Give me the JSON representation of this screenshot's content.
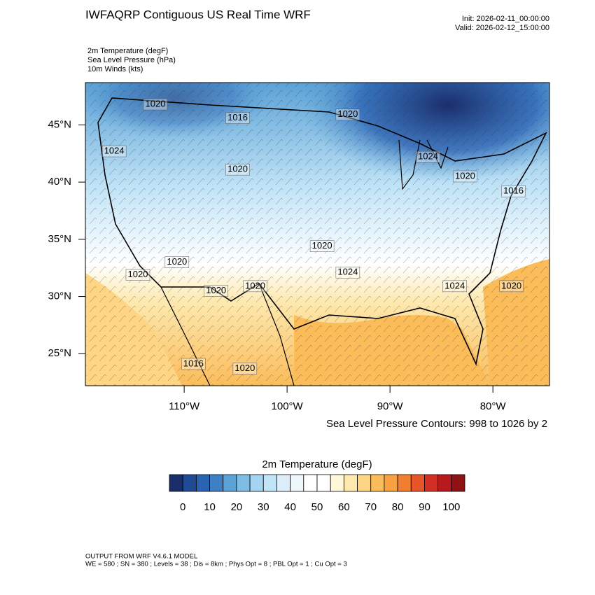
{
  "header": {
    "title": "IWFAQRP Contiguous US Real Time WRF",
    "init": "Init: 2026-02-11_00:00:00",
    "valid": "Valid: 2026-02-12_15:00:00",
    "fields": [
      "2m Temperature   (degF)",
      "Sea Level Pressure   (hPa)",
      "10m Winds   (kts)"
    ]
  },
  "map": {
    "xlim": [
      -119.6,
      -74.5
    ],
    "ylim": [
      22.2,
      48.7
    ],
    "xticks": [
      {
        "value": -110,
        "label": "110°W"
      },
      {
        "value": -100,
        "label": "100°W"
      },
      {
        "value": -90,
        "label": "90°W"
      },
      {
        "value": -80,
        "label": "80°W"
      }
    ],
    "yticks": [
      {
        "value": 25,
        "label": "25°N"
      },
      {
        "value": 30,
        "label": "30°N"
      },
      {
        "value": 35,
        "label": "35°N"
      },
      {
        "value": 40,
        "label": "40°N"
      },
      {
        "value": 45,
        "label": "45°N"
      }
    ],
    "contour_labels": [
      {
        "text": "1020",
        "lon": -112.8,
        "lat": 46.8
      },
      {
        "text": "1016",
        "lon": -104.8,
        "lat": 45.6
      },
      {
        "text": "1024",
        "lon": -116.8,
        "lat": 42.7
      },
      {
        "text": "1020",
        "lon": -104.8,
        "lat": 41.1
      },
      {
        "text": "1020",
        "lon": -94.1,
        "lat": 45.9
      },
      {
        "text": "1024",
        "lon": -86.3,
        "lat": 42.2
      },
      {
        "text": "1020",
        "lon": -82.7,
        "lat": 40.5
      },
      {
        "text": "1016",
        "lon": -78.0,
        "lat": 39.2
      },
      {
        "text": "1020",
        "lon": -96.6,
        "lat": 34.4
      },
      {
        "text": "1024",
        "lon": -94.1,
        "lat": 32.1
      },
      {
        "text": "1020",
        "lon": -110.7,
        "lat": 33.0
      },
      {
        "text": "1020",
        "lon": -114.5,
        "lat": 31.9
      },
      {
        "text": "1020",
        "lon": -106.9,
        "lat": 30.5
      },
      {
        "text": "1020",
        "lon": -103.1,
        "lat": 30.9
      },
      {
        "text": "1024",
        "lon": -83.7,
        "lat": 30.9
      },
      {
        "text": "1020",
        "lon": -78.2,
        "lat": 30.9
      },
      {
        "text": "1016",
        "lon": -109.1,
        "lat": 24.1
      },
      {
        "text": "1020",
        "lon": -104.1,
        "lat": 23.7
      }
    ],
    "contour_note": "Sea Level Pressure Contours: 998 to 1026 by 2"
  },
  "colorbar": {
    "title": "2m Temperature  (degF)",
    "range": [
      -5,
      105
    ],
    "colors": [
      "#1a2e6b",
      "#1f4a94",
      "#2b63b3",
      "#3d80c4",
      "#5ba2d6",
      "#7ebde6",
      "#a3d4f2",
      "#c2e4f7",
      "#dceef9",
      "#eef7fc",
      "#ffffff",
      "#ffffff",
      "#fff7d9",
      "#fde9b0",
      "#fdd585",
      "#fbbc5a",
      "#f7a140",
      "#f27f30",
      "#e65528",
      "#d22e25",
      "#b8191f",
      "#8c1216"
    ],
    "ticks": [
      0,
      10,
      20,
      30,
      40,
      50,
      60,
      70,
      80,
      90,
      100
    ]
  },
  "footer": {
    "line1": "OUTPUT FROM WRF V4.6.1 MODEL",
    "line2": "WE = 580 ; SN = 380 ; Levels = 38 ; Dis = 8km ; Phys Opt = 8 ; PBL Opt = 1 ; Cu Opt = 3"
  }
}
